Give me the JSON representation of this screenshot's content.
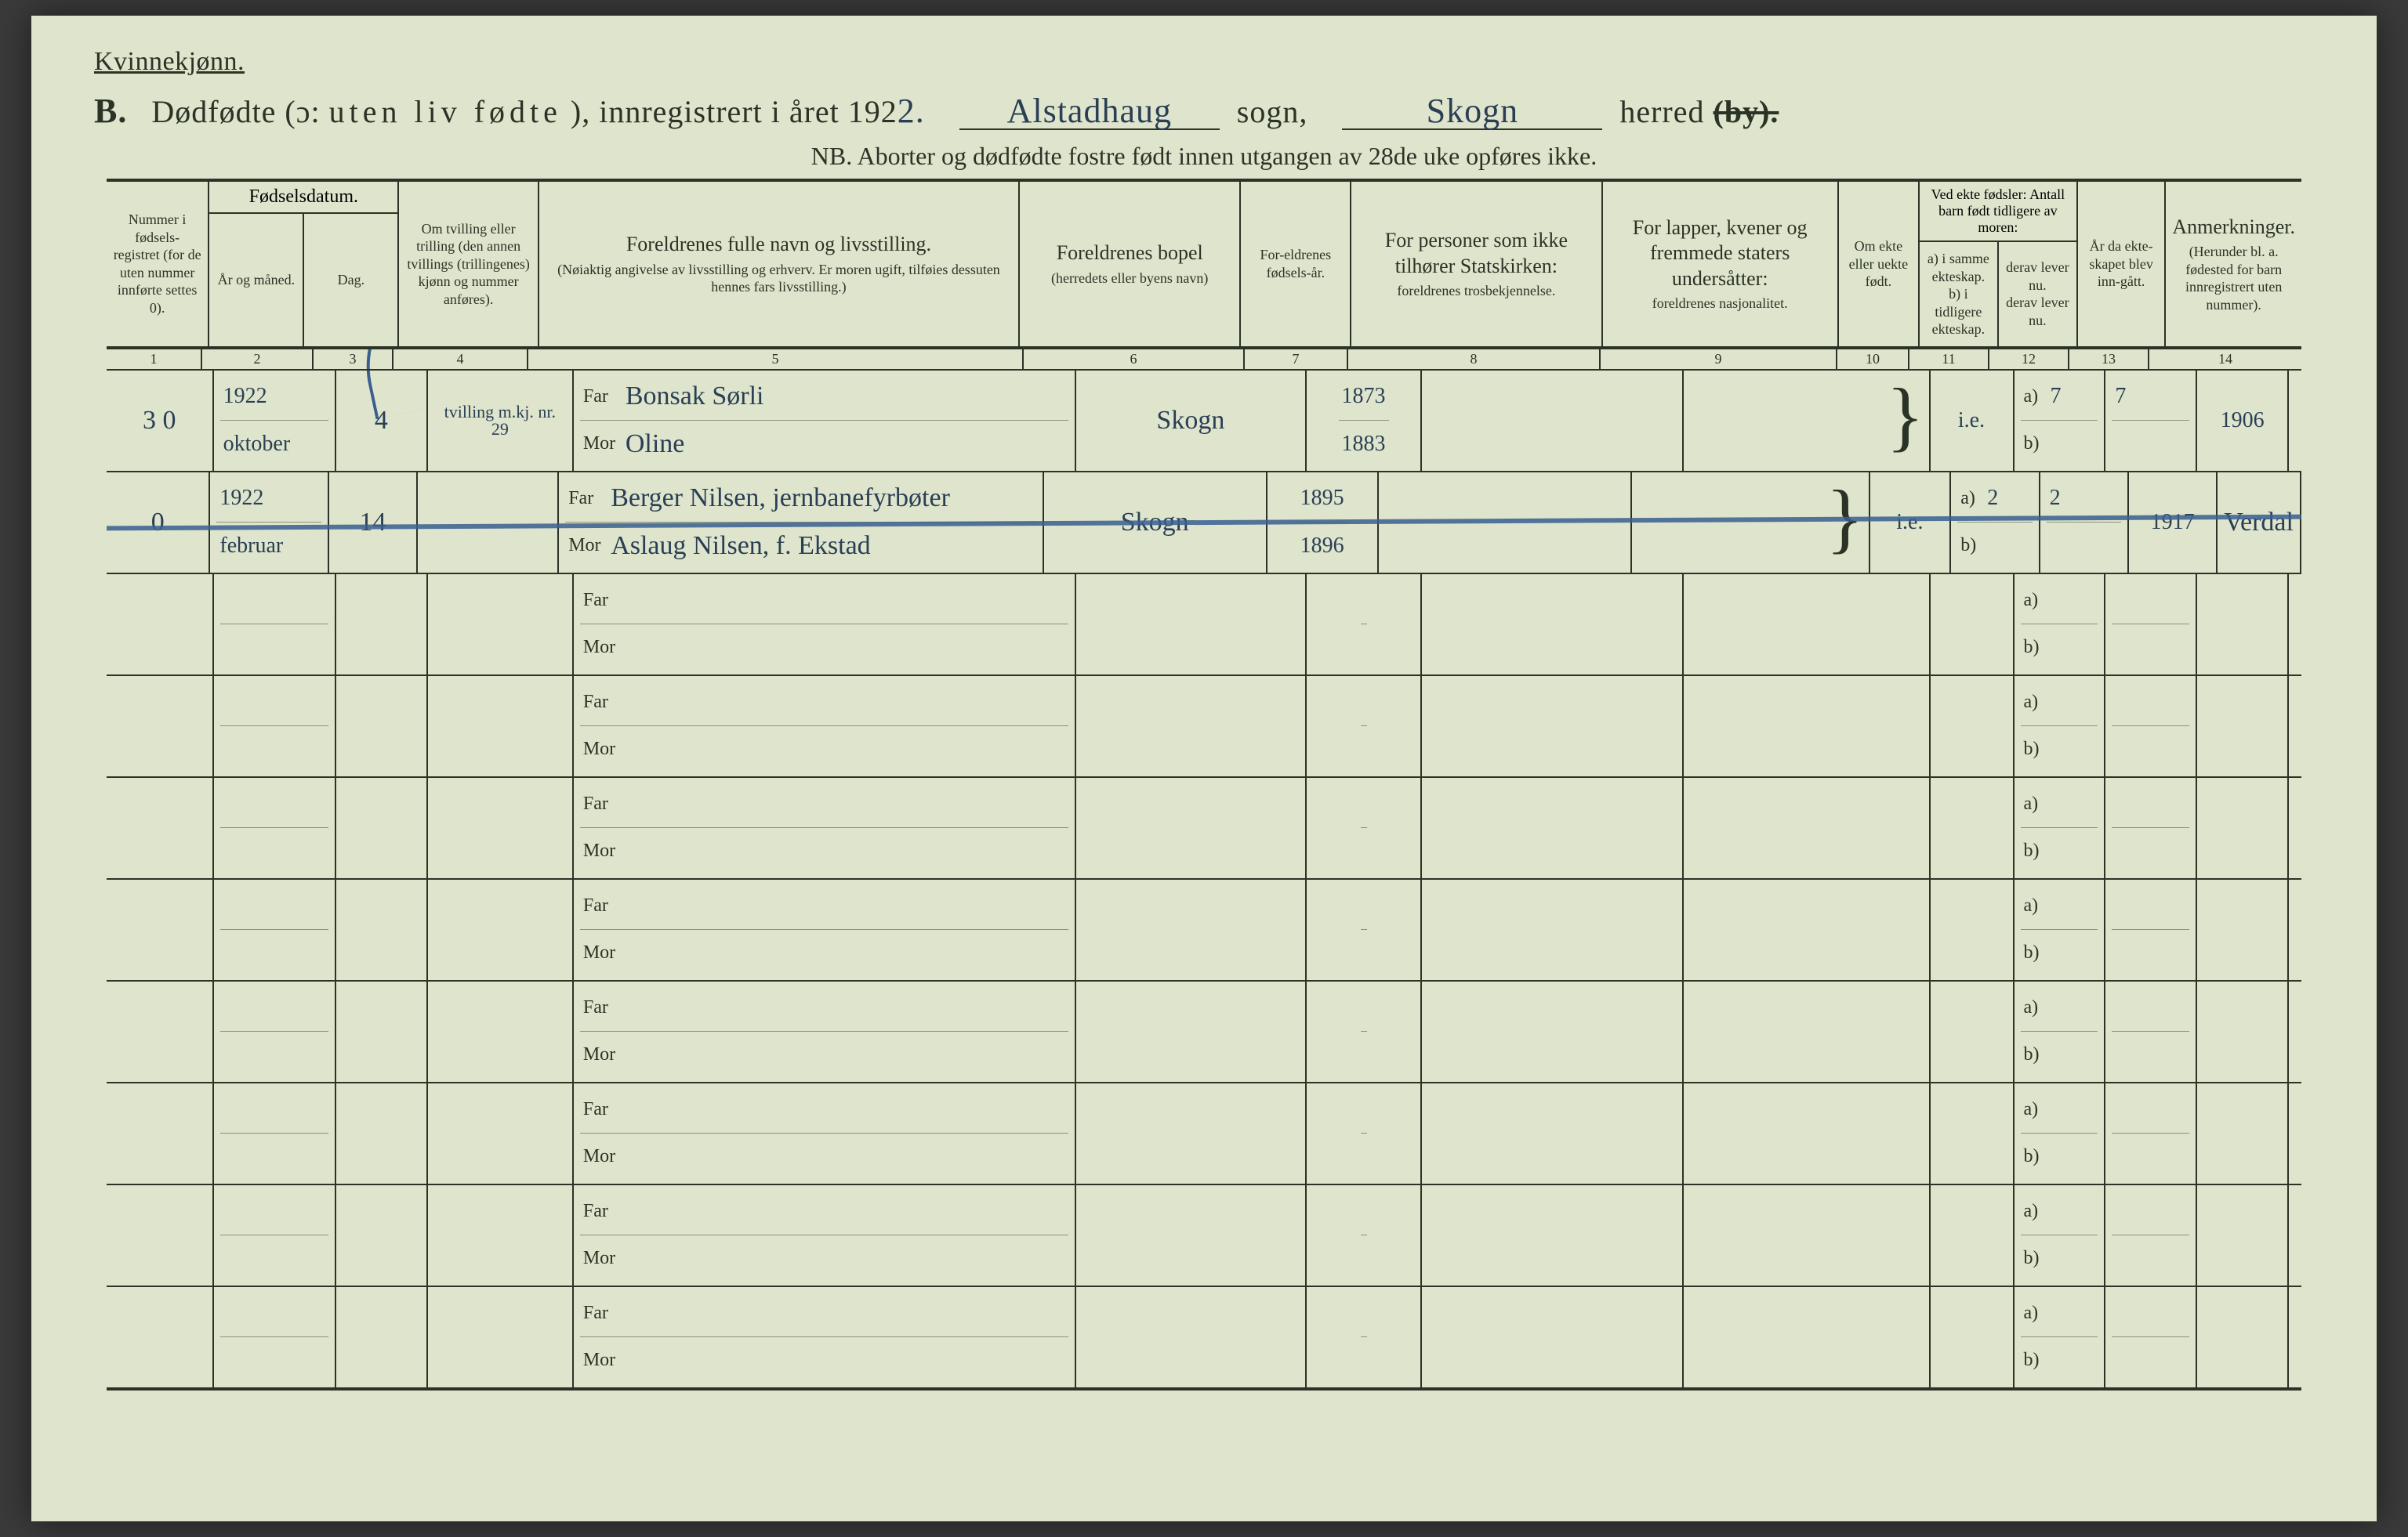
{
  "colors": {
    "paper": "#dfe5cc",
    "ink": "#2a3326",
    "handwriting": "#2a3f55",
    "annotation_blue": "#3a5f8f",
    "background": "#3a3a3a",
    "faint_rule": "#8a927a"
  },
  "typography": {
    "printed_family": "Times New Roman, serif",
    "handwriting_family": "Comic Sans MS, Segoe Script, cursive",
    "title_size_pt": 40,
    "header_label_size_pt": 22,
    "body_hand_size_pt": 34
  },
  "header": {
    "gender": "Kvinnekjønn.",
    "section_letter": "B.",
    "title_prefix": "Dødfødte (ɔ:",
    "title_spaced": "uten liv fødte",
    "title_suffix": "), innregistrert i året 192",
    "year_suffix_hand": "2.",
    "sogn_hand": "Alstadhaug",
    "sogn_label": "sogn,",
    "herred_hand": "Skogn",
    "herred_label": "herred",
    "herred_struck": "(by).",
    "nb": "NB.  Aborter og dødfødte fostre født innen utgangen av 28de uke opføres ikke."
  },
  "columns": [
    {
      "num": "1",
      "label": "Nummer i fødsels-registret (for de uten nummer innførte settes 0).",
      "w": "w1"
    },
    {
      "num": "2",
      "label": "År og måned.",
      "group": "Fødselsdatum.",
      "w": "w2"
    },
    {
      "num": "3",
      "label": "Dag.",
      "w": "w3"
    },
    {
      "num": "4",
      "label": "Om tvilling eller trilling (den annen tvillings (trillingenes) kjønn og nummer anføres).",
      "w": "w4"
    },
    {
      "num": "5",
      "label": "Foreldrenes fulle navn og livsstilling.",
      "sub": "(Nøiaktig angivelse av livsstilling og erhverv. Er moren ugift, tilføies dessuten hennes fars livsstilling.)",
      "w": "w5"
    },
    {
      "num": "6",
      "label": "Foreldrenes bopel",
      "sub": "(herredets eller byens navn)",
      "w": "w6"
    },
    {
      "num": "7",
      "label": "For-eldrenes fødsels-år.",
      "w": "w7"
    },
    {
      "num": "8",
      "label": "For personer som ikke tilhører Statskirken:",
      "sub": "foreldrenes trosbekjennelse.",
      "w": "w8"
    },
    {
      "num": "9",
      "label": "For lapper, kvener og fremmede staters undersåtter:",
      "sub": "foreldrenes nasjonalitet.",
      "w": "w9"
    },
    {
      "num": "10",
      "label": "Om ekte eller uekte født.",
      "w": "w10"
    },
    {
      "num": "11",
      "label": "a) i samme ekteskap.\nb) i tidligere ekteskap.",
      "group": "Ved ekte fødsler: Antall barn født tidligere av moren:",
      "w": "w11"
    },
    {
      "num": "12",
      "label": "derav lever nu.\nderav lever nu.",
      "w": "w12"
    },
    {
      "num": "13",
      "label": "År da ekte-skapet blev inn-gått.",
      "w": "w13"
    },
    {
      "num": "14",
      "label": "Anmerkninger.",
      "sub": "(Herunder bl. a. fødested for barn innregistrert uten nummer).",
      "w": "w14"
    }
  ],
  "subrow_labels": {
    "far": "Far",
    "mor": "Mor",
    "a": "a)",
    "b": "b)"
  },
  "rows": [
    {
      "num": "3 0",
      "year_month_top": "1922",
      "year_month_bot": "oktober",
      "day": "4",
      "twin": "tvilling m.kj. nr. 29",
      "far": "Bonsak Sørli",
      "mor": "Oline",
      "bopel": "Skogn",
      "far_year": "1873",
      "mor_year": "1883",
      "col8": "",
      "col9": "",
      "ekte": "i.e.",
      "a_val": "7",
      "a_lev": "7",
      "b_val": "",
      "b_lev": "",
      "year_married": "1906",
      "remarks": "",
      "struck": false
    },
    {
      "num": "0",
      "year_month_top": "1922",
      "year_month_bot": "februar",
      "day": "14",
      "twin": "",
      "far": "Berger Nilsen, jernbanefyrbøter",
      "mor": "Aslaug Nilsen, f. Ekstad",
      "bopel": "Skogn",
      "far_year": "1895",
      "mor_year": "1896",
      "col8": "",
      "col9": "",
      "ekte": "i.e.",
      "a_val": "2",
      "a_lev": "2",
      "b_val": "",
      "b_lev": "",
      "year_married": "1917",
      "remarks": "Verdal",
      "struck": true
    }
  ],
  "blank_rows": 8
}
